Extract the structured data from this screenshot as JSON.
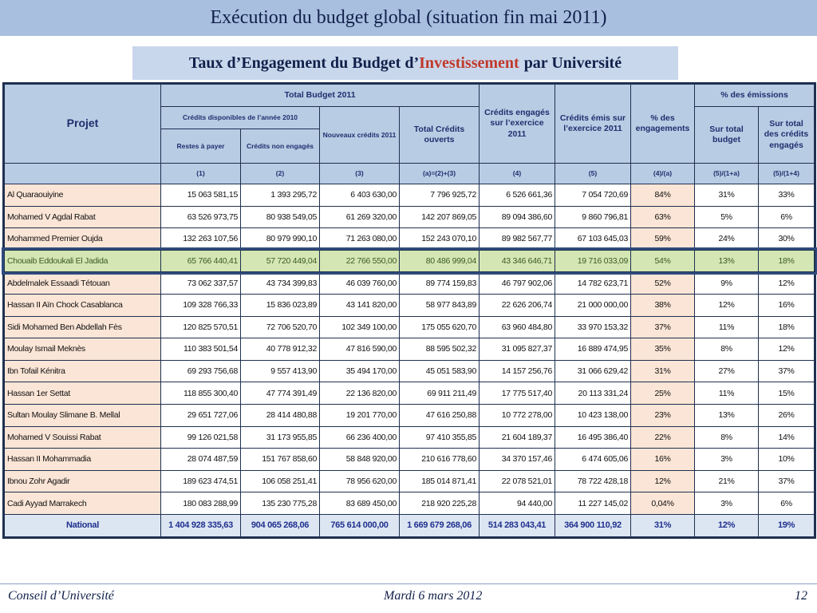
{
  "title": "Exécution du budget global (situation fin mai 2011)",
  "subtitle": {
    "before": "Taux d’Engagement du Budget d’",
    "highlight": "Investissement",
    "after": "par Université"
  },
  "colors": {
    "header_bg": "#b8cce4",
    "name_bg": "#fbe5d6",
    "highlight_row": "#d4e6b4",
    "national_bg": "#dce6f2",
    "accent_red": "#c0392b"
  },
  "table": {
    "headers": {
      "projet": "Projet",
      "total_budget": "Total Budget 2011",
      "credits_dispo": "Crédits disponibles de l’année 2010",
      "restes": "Restes à payer",
      "non_engages": "Crédits non engagés",
      "nouveaux": "Nouveaux crédits 2011",
      "total_ouverts": "Total Crédits ouverts",
      "engages": "Crédits engagés sur l’exercice 2011",
      "emis": "Crédits émis sur l’exercice 2011",
      "pct_engagements": "% des engagements",
      "pct_emissions": "% des émissions",
      "sur_total_budget": "Sur total budget",
      "sur_total_engages": "Sur total des crédits engagés"
    },
    "formulas": [
      "(1)",
      "(2)",
      "(3)",
      "(a)=(2)+(3)",
      "(4)",
      "(5)",
      "(4)/(a)",
      "(5)/(1+a)",
      "(5)/(1+4)"
    ],
    "rows": [
      [
        "Al Quaraouiyine",
        "15 063 581,15",
        "1 393 295,72",
        "6 403 630,00",
        "7 796 925,72",
        "6 526 661,36",
        "7 054 720,69",
        "84%",
        "31%",
        "33%"
      ],
      [
        "Mohamed V Agdal Rabat",
        "63 526 973,75",
        "80 938 549,05",
        "61 269 320,00",
        "142 207 869,05",
        "89 094 386,60",
        "9 860 796,81",
        "63%",
        "5%",
        "6%"
      ],
      [
        "Mohammed Premier Oujda",
        "132 263 107,56",
        "80 979 990,10",
        "71 263 080,00",
        "152 243 070,10",
        "89 982 567,77",
        "67 103 645,03",
        "59%",
        "24%",
        "30%"
      ],
      [
        "Chouaib Eddoukali El Jadida",
        "65 766 440,41",
        "57 720 449,04",
        "22 766 550,00",
        "80 486 999,04",
        "43 346 646,71",
        "19 716 033,09",
        "54%",
        "13%",
        "18%"
      ],
      [
        "Abdelmalek Essaadi Tétouan",
        "73 062 337,57",
        "43 734 399,83",
        "46 039 760,00",
        "89 774 159,83",
        "46 797 902,06",
        "14 782 623,71",
        "52%",
        "9%",
        "12%"
      ],
      [
        "Hassan II Aïn Chock Casablanca",
        "109 328 766,33",
        "15 836 023,89",
        "43 141 820,00",
        "58 977 843,89",
        "22 626 206,74",
        "21 000 000,00",
        "38%",
        "12%",
        "16%"
      ],
      [
        "Sidi Mohamed Ben Abdellah Fès",
        "120 825 570,51",
        "72 706 520,70",
        "102 349 100,00",
        "175 055 620,70",
        "63 960 484,80",
        "33 970 153,32",
        "37%",
        "11%",
        "18%"
      ],
      [
        "Moulay Ismail Meknès",
        "110 383 501,54",
        "40 778 912,32",
        "47 816 590,00",
        "88 595 502,32",
        "31 095 827,37",
        "16 889 474,95",
        "35%",
        "8%",
        "12%"
      ],
      [
        "Ibn Tofail Kénitra",
        "69 293 756,68",
        "9 557 413,90",
        "35 494 170,00",
        "45 051 583,90",
        "14 157 256,76",
        "31 066 629,42",
        "31%",
        "27%",
        "37%"
      ],
      [
        "Hassan 1er Settat",
        "118 855 300,40",
        "47 774 391,49",
        "22 136 820,00",
        "69 911 211,49",
        "17 775 517,40",
        "20 113 331,24",
        "25%",
        "11%",
        "15%"
      ],
      [
        "Sultan Moulay Slimane B. Mellal",
        "29 651 727,06",
        "28 414 480,88",
        "19 201 770,00",
        "47 616 250,88",
        "10 772 278,00",
        "10 423 138,00",
        "23%",
        "13%",
        "26%"
      ],
      [
        "Mohamed V Souissi Rabat",
        "99 126 021,58",
        "31 173 955,85",
        "66 236 400,00",
        "97 410 355,85",
        "21 604 189,37",
        "16 495 386,40",
        "22%",
        "8%",
        "14%"
      ],
      [
        "Hassan II Mohammadia",
        "28 074 487,59",
        "151 767 858,60",
        "58 848 920,00",
        "210 616 778,60",
        "34 370 157,46",
        "6 474 605,06",
        "16%",
        "3%",
        "10%"
      ],
      [
        "Ibnou Zohr Agadir",
        "189 623 474,51",
        "106 058 251,41",
        "78 956 620,00",
        "185 014 871,41",
        "22 078 521,01",
        "78 722 428,18",
        "12%",
        "21%",
        "37%"
      ],
      [
        "Cadi Ayyad Marrakech",
        "180 083 288,99",
        "135 230 775,28",
        "83 689 450,00",
        "218 920 225,28",
        "94 440,00",
        "11 227 145,02",
        "0,04%",
        "3%",
        "6%"
      ]
    ],
    "national": [
      "National",
      "1 404 928 335,63",
      "904 065 268,06",
      "765 614 000,00",
      "1 669 679 268,06",
      "514 283 043,41",
      "364 900 110,92",
      "31%",
      "12%",
      "19%"
    ]
  },
  "footer": {
    "left": "Conseil d’Université",
    "center": "Mardi 6 mars 2012",
    "page": "12"
  }
}
